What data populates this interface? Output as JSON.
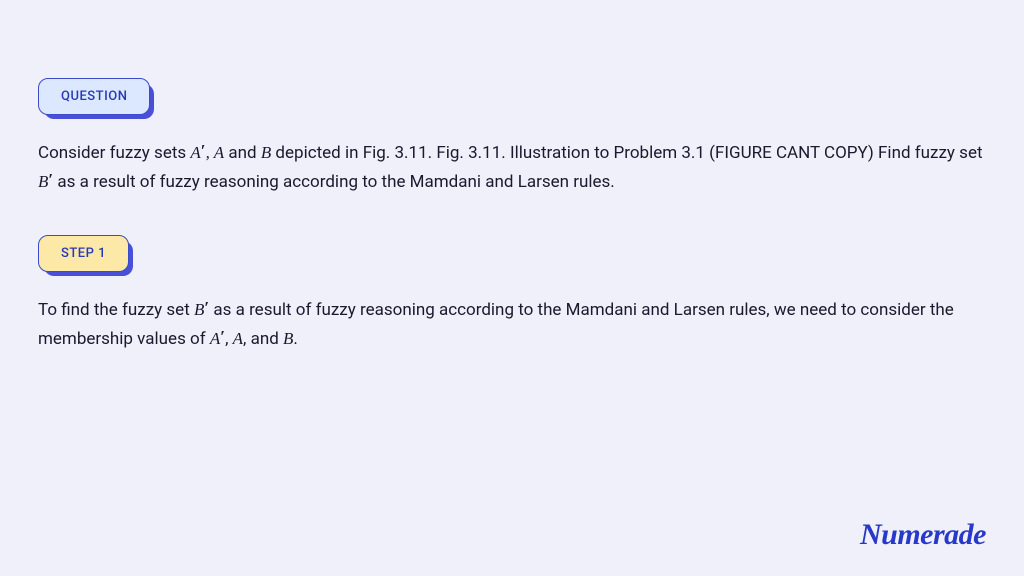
{
  "badges": {
    "question_label": "QUESTION",
    "step1_label": "STEP 1"
  },
  "question_text_parts": {
    "p1": "Consider fuzzy sets ",
    "m1": "A",
    "prime1": "′",
    "comma1": ", ",
    "m2": "A",
    "p2": " and ",
    "m3": "B",
    "p3": " depicted in Fig. 3.11. Fig. 3.11. Illustration to Problem 3.1 (FIGURE CANT COPY) Find fuzzy set ",
    "m4": "B",
    "prime2": "′",
    "p4": " as a result of fuzzy reasoning according to the Mamdani and Larsen rules."
  },
  "step1_text_parts": {
    "p1": "To find the fuzzy set ",
    "m1": "B",
    "prime1": "′",
    "p2": " as a result of fuzzy reasoning according to the Mamdani and Larsen rules, we need to consider the membership values of ",
    "m2": "A",
    "prime2": "′",
    "comma1": ", ",
    "m3": "A",
    "comma2": ", and ",
    "m4": "B",
    "period": "."
  },
  "logo_text": "Numerade",
  "colors": {
    "page_bg": "#eff0fa",
    "badge_question_bg": "#dce8ff",
    "badge_step_bg": "#fce9a8",
    "badge_border": "#3a4cc9",
    "badge_text": "#2838b8",
    "badge_shadow": "#4a4fd9",
    "body_text": "#1a1a2e",
    "logo_color": "#2838c8"
  },
  "typography": {
    "badge_fontsize": 13,
    "body_fontsize": 17,
    "body_lineheight": 1.7,
    "logo_fontsize": 30
  }
}
